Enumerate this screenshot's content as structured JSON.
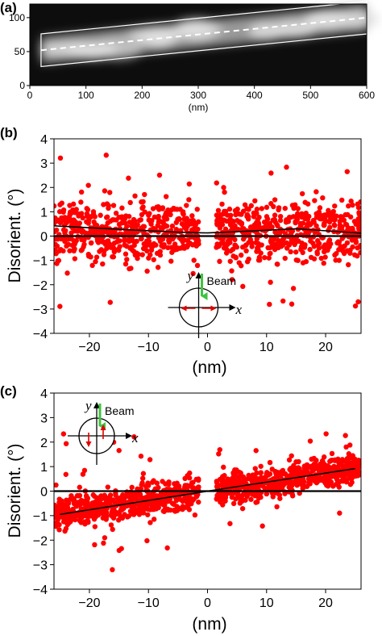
{
  "chart_data": [
    {
      "panel": "(a)",
      "type": "heatmap",
      "xlabel": "(nm)",
      "xlim": [
        0,
        600
      ],
      "ylim": [
        0,
        120
      ],
      "xticks": [
        "0",
        "100",
        "200",
        "300",
        "400",
        "500",
        "600"
      ],
      "yticks": [
        "0",
        "50",
        "100"
      ],
      "box": {
        "x_start": 20,
        "x_end": 600,
        "y_center_start": 52,
        "y_center_end": 100,
        "half_height": 24
      },
      "dashed_line": {
        "x": [
          20,
          600
        ],
        "y": [
          52,
          100
        ]
      },
      "grid": false
    },
    {
      "panel": "(b)",
      "type": "scatter",
      "xlabel": "(nm)",
      "ylabel": "Disorient. (°)",
      "xlim": [
        -26,
        26
      ],
      "ylim": [
        -4,
        4
      ],
      "xticks": [
        "−20",
        "−10",
        "0",
        "10",
        "20"
      ],
      "yticks": [
        "4",
        "3",
        "2",
        "1",
        "0",
        "−1",
        "−2",
        "−3",
        "−4"
      ],
      "point_color": "#ff0000",
      "scatter_model": {
        "x_ranges": [
          [
            -26,
            -1.5
          ],
          [
            1.5,
            26
          ]
        ],
        "n_per_side": 520,
        "trend": "constant-ish",
        "spread": 0.85,
        "outlier_ymin": -3.1,
        "outlier_ymax": 3.7
      },
      "fit_line": {
        "x": [
          -26,
          -15,
          -5,
          0,
          5,
          15,
          26
        ],
        "y": [
          0.42,
          0.28,
          0.16,
          0.13,
          0.18,
          0.3,
          0.12
        ]
      },
      "zero_line": true,
      "inset": {
        "label": "Beam",
        "x_var": "x",
        "y_var": "y",
        "arrows": "horizontal",
        "position": "bottom-center"
      },
      "grid": false
    },
    {
      "panel": "(c)",
      "type": "scatter",
      "xlabel": "(nm)",
      "ylabel": "Disorient. (°)",
      "xlim": [
        -26,
        26
      ],
      "ylim": [
        -4,
        4
      ],
      "xticks": [
        "−20",
        "−10",
        "0",
        "10",
        "20"
      ],
      "yticks": [
        "4",
        "3",
        "2",
        "1",
        "0",
        "−1",
        "−2",
        "−3",
        "−4"
      ],
      "point_color": "#ff0000",
      "scatter_model": {
        "x_ranges": [
          [
            -26,
            -1.5
          ],
          [
            1.5,
            26
          ]
        ],
        "n_per_side": 620,
        "trend": "linear",
        "slope": 0.036,
        "spread": 0.42,
        "outlier_ymin": -3.4,
        "outlier_ymax": 2.7
      },
      "fit_line": {
        "x": [
          -25,
          0,
          25
        ],
        "y": [
          -0.95,
          0.0,
          0.92
        ]
      },
      "zero_line": true,
      "inset": {
        "label": "Beam",
        "x_var": "x",
        "y_var": "y",
        "arrows": "vertical",
        "position": "top-left"
      },
      "grid": false
    }
  ]
}
